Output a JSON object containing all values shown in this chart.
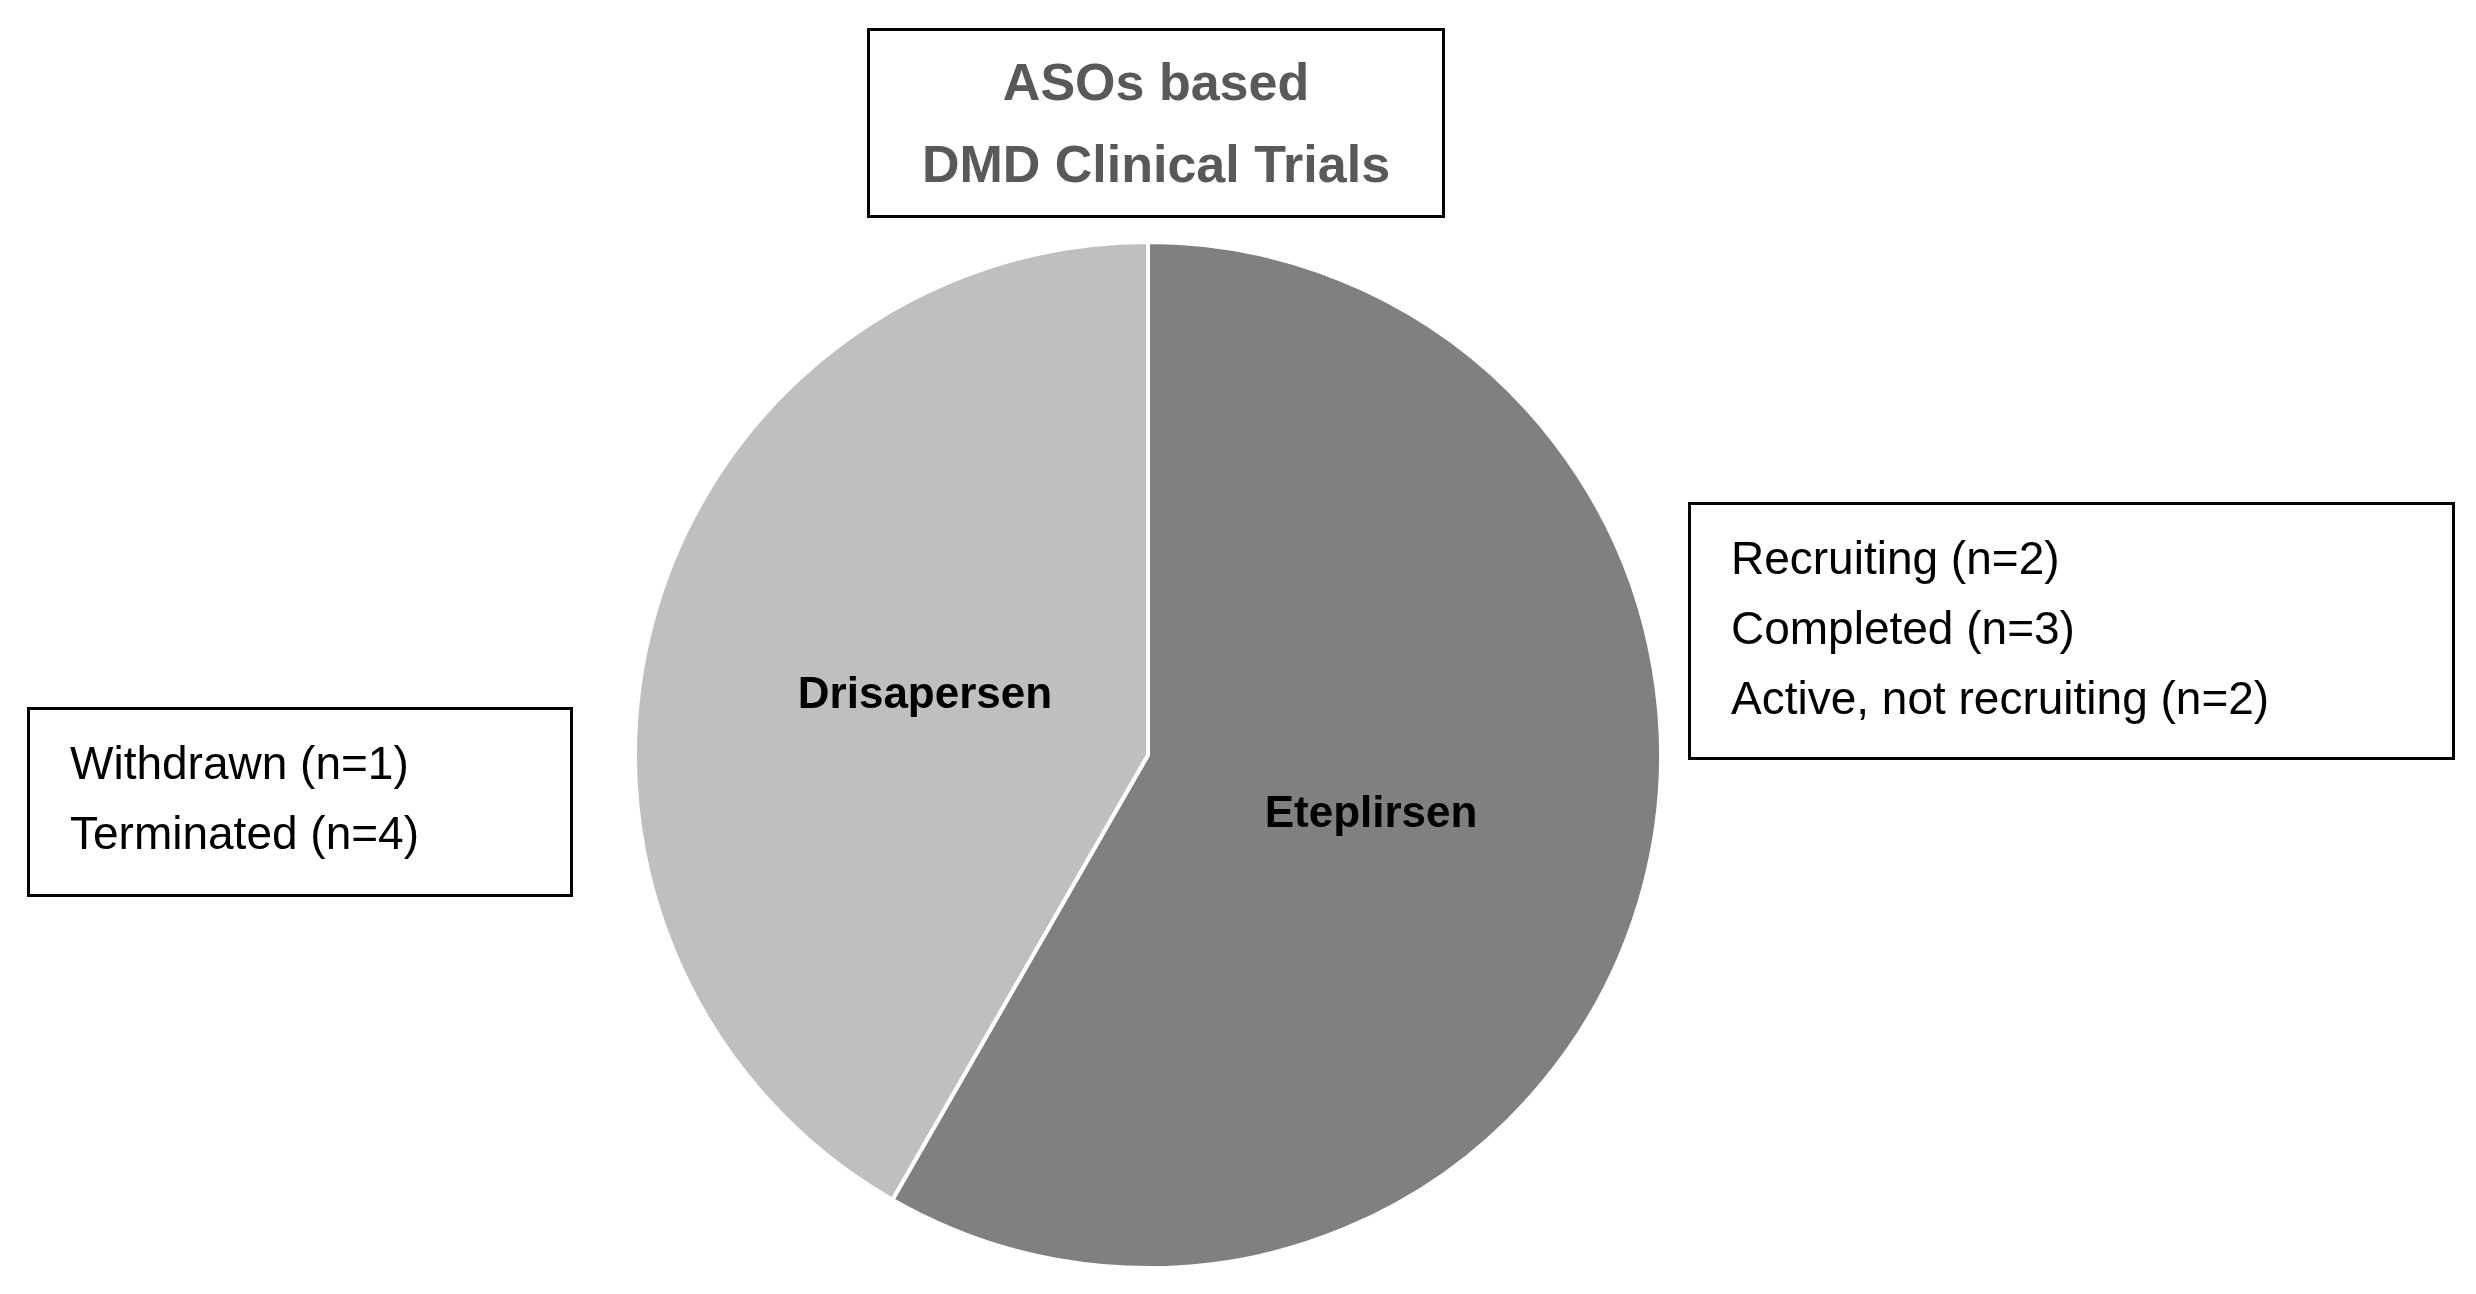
{
  "chart_data": {
    "type": "pie",
    "title": "ASOs based\nDMD Clinical Trials",
    "categories": [
      "Eteplirsen",
      "Drisapersen"
    ],
    "values": [
      58.3,
      41.7
    ],
    "colors": [
      "#808080",
      "#bfbfbf"
    ],
    "annotations": [
      "Withdrawn (n=1)\nTerminated (n=4)",
      "Recruiting (n=2)\nCompleted (n=3)\nActive, not recruiting (n=2)"
    ]
  }
}
